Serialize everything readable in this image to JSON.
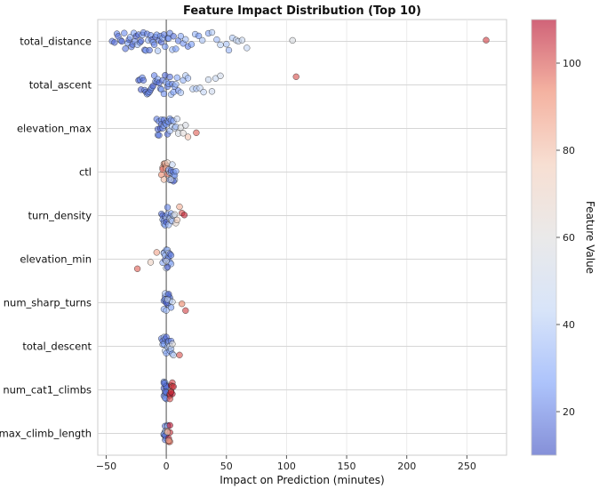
{
  "chart_data": {
    "type": "scatter",
    "subtype": "beeswarm",
    "title": "Feature Impact Distribution (Top 10)",
    "xlabel": "Impact on Prediction (minutes)",
    "ylabel": "",
    "xlim": [
      -57,
      283
    ],
    "xticks": [
      -50,
      0,
      50,
      100,
      150,
      200,
      250
    ],
    "grid": true,
    "colorbar": {
      "label": "Feature Value",
      "min": 10,
      "max": 110,
      "ticks": [
        20,
        40,
        60,
        80,
        100
      ],
      "colormap": "coolwarm",
      "colors": [
        "#3b4cc0",
        "#7b9ff9",
        "#c0d4f5",
        "#dddcdc",
        "#f2cbb7",
        "#ee8468",
        "#b40426"
      ]
    },
    "reference_line": {
      "x": 0,
      "color": "#888888"
    },
    "features": [
      {
        "name": "total_distance",
        "points": [
          [
            -45,
            20
          ],
          [
            -43,
            16
          ],
          [
            -41,
            22
          ],
          [
            -40,
            18
          ],
          [
            -38,
            30
          ],
          [
            -37,
            14
          ],
          [
            -35,
            24
          ],
          [
            -34,
            19
          ],
          [
            -32,
            26
          ],
          [
            -31,
            15
          ],
          [
            -30,
            32
          ],
          [
            -29,
            21
          ],
          [
            -28,
            17
          ],
          [
            -27,
            28
          ],
          [
            -26,
            23
          ],
          [
            -25,
            13
          ],
          [
            -24,
            35
          ],
          [
            -23,
            19
          ],
          [
            -22,
            25
          ],
          [
            -21,
            16
          ],
          [
            -20,
            30
          ],
          [
            -19,
            22
          ],
          [
            -18,
            14
          ],
          [
            -17,
            27
          ],
          [
            -16,
            20
          ],
          [
            -15,
            33
          ],
          [
            -14,
            18
          ],
          [
            -13,
            24
          ],
          [
            -12,
            15
          ],
          [
            -11,
            29
          ],
          [
            -10,
            21
          ],
          [
            -9,
            17
          ],
          [
            -8,
            26
          ],
          [
            -7,
            38
          ],
          [
            -6,
            19
          ],
          [
            -5,
            23
          ],
          [
            -4,
            16
          ],
          [
            -3,
            31
          ],
          [
            -2,
            20
          ],
          [
            -1,
            25
          ],
          [
            1,
            18
          ],
          [
            2,
            28
          ],
          [
            3,
            22
          ],
          [
            5,
            34
          ],
          [
            6,
            17
          ],
          [
            8,
            26
          ],
          [
            10,
            21
          ],
          [
            12,
            30
          ],
          [
            14,
            24
          ],
          [
            16,
            36
          ],
          [
            18,
            20
          ],
          [
            21,
            27
          ],
          [
            24,
            33
          ],
          [
            27,
            25
          ],
          [
            30,
            38
          ],
          [
            35,
            30
          ],
          [
            38,
            40
          ],
          [
            42,
            35
          ],
          [
            45,
            42
          ],
          [
            50,
            38
          ],
          [
            52,
            34
          ],
          [
            55,
            40
          ],
          [
            58,
            44
          ],
          [
            60,
            46
          ],
          [
            63,
            48
          ],
          [
            67,
            45
          ],
          [
            105,
            57
          ],
          [
            266,
            102
          ]
        ]
      },
      {
        "name": "total_ascent",
        "points": [
          [
            -23,
            16
          ],
          [
            -22,
            20
          ],
          [
            -21,
            14
          ],
          [
            -20,
            24
          ],
          [
            -19,
            18
          ],
          [
            -18,
            22
          ],
          [
            -17,
            15
          ],
          [
            -16,
            27
          ],
          [
            -15,
            19
          ],
          [
            -14,
            23
          ],
          [
            -13,
            17
          ],
          [
            -12,
            26
          ],
          [
            -11,
            13
          ],
          [
            -10,
            21
          ],
          [
            -9,
            25
          ],
          [
            -8,
            18
          ],
          [
            -7,
            30
          ],
          [
            -6,
            16
          ],
          [
            -5,
            22
          ],
          [
            -4,
            28
          ],
          [
            -3,
            19
          ],
          [
            -2,
            24
          ],
          [
            -1,
            15
          ],
          [
            0,
            32
          ],
          [
            1,
            20
          ],
          [
            2,
            26
          ],
          [
            3,
            18
          ],
          [
            4,
            34
          ],
          [
            5,
            22
          ],
          [
            6,
            28
          ],
          [
            7,
            25
          ],
          [
            8,
            36
          ],
          [
            9,
            30
          ],
          [
            10,
            24
          ],
          [
            12,
            38
          ],
          [
            14,
            33
          ],
          [
            16,
            40
          ],
          [
            18,
            36
          ],
          [
            22,
            42
          ],
          [
            25,
            38
          ],
          [
            28,
            45
          ],
          [
            31,
            44
          ],
          [
            35,
            48
          ],
          [
            38,
            50
          ],
          [
            41,
            47
          ],
          [
            45,
            52
          ],
          [
            108,
            100
          ]
        ]
      },
      {
        "name": "elevation_max",
        "points": [
          [
            -8,
            20
          ],
          [
            -7,
            16
          ],
          [
            -7,
            25
          ],
          [
            -6,
            18
          ],
          [
            -6,
            22
          ],
          [
            -5,
            14
          ],
          [
            -4,
            27
          ],
          [
            -4,
            19
          ],
          [
            -3,
            23
          ],
          [
            -2,
            17
          ],
          [
            -2,
            30
          ],
          [
            -1,
            21
          ],
          [
            0,
            25
          ],
          [
            1,
            18
          ],
          [
            1,
            33
          ],
          [
            2,
            22
          ],
          [
            3,
            28
          ],
          [
            3,
            36
          ],
          [
            4,
            24
          ],
          [
            5,
            40
          ],
          [
            6,
            30
          ],
          [
            7,
            44
          ],
          [
            8,
            36
          ],
          [
            9,
            50
          ],
          [
            10,
            55
          ],
          [
            12,
            58
          ],
          [
            14,
            62
          ],
          [
            16,
            56
          ],
          [
            18,
            78
          ],
          [
            25,
            98
          ]
        ]
      },
      {
        "name": "ctl",
        "points": [
          [
            -4,
            92
          ],
          [
            -3,
            85
          ],
          [
            -3,
            98
          ],
          [
            -2,
            88
          ],
          [
            -2,
            80
          ],
          [
            -1,
            95
          ],
          [
            -1,
            76
          ],
          [
            0,
            90
          ],
          [
            0,
            83
          ],
          [
            1,
            72
          ],
          [
            1,
            96
          ],
          [
            2,
            64
          ],
          [
            2,
            30
          ],
          [
            3,
            40
          ],
          [
            3,
            22
          ],
          [
            4,
            35
          ],
          [
            4,
            18
          ],
          [
            5,
            45
          ],
          [
            5,
            26
          ],
          [
            6,
            32
          ],
          [
            6,
            20
          ],
          [
            7,
            38
          ],
          [
            7,
            25
          ],
          [
            8,
            28
          ],
          [
            6,
            14
          ],
          [
            4,
            50
          ]
        ]
      },
      {
        "name": "turn_density",
        "points": [
          [
            -4,
            20
          ],
          [
            -3,
            16
          ],
          [
            -3,
            28
          ],
          [
            -2,
            22
          ],
          [
            -2,
            34
          ],
          [
            -1,
            18
          ],
          [
            -1,
            26
          ],
          [
            0,
            40
          ],
          [
            0,
            14
          ],
          [
            1,
            30
          ],
          [
            1,
            22
          ],
          [
            2,
            36
          ],
          [
            3,
            19
          ],
          [
            3,
            44
          ],
          [
            4,
            27
          ],
          [
            4,
            50
          ],
          [
            5,
            33
          ],
          [
            6,
            38
          ],
          [
            7,
            58
          ],
          [
            8,
            66
          ],
          [
            9,
            74
          ],
          [
            11,
            84
          ],
          [
            13,
            100
          ],
          [
            15,
            106
          ]
        ]
      },
      {
        "name": "elevation_min",
        "points": [
          [
            -24,
            98
          ],
          [
            -13,
            72
          ],
          [
            -8,
            86
          ],
          [
            -3,
            30
          ],
          [
            -2,
            22
          ],
          [
            -2,
            40
          ],
          [
            -1,
            18
          ],
          [
            -1,
            34
          ],
          [
            0,
            26
          ],
          [
            0,
            44
          ],
          [
            1,
            20
          ],
          [
            1,
            36
          ],
          [
            2,
            24
          ],
          [
            2,
            48
          ],
          [
            3,
            28
          ],
          [
            3,
            16
          ],
          [
            4,
            32
          ],
          [
            4,
            22
          ],
          [
            1,
            14
          ],
          [
            0,
            52
          ]
        ]
      },
      {
        "name": "num_sharp_turns",
        "points": [
          [
            -2,
            20
          ],
          [
            -2,
            30
          ],
          [
            -1,
            16
          ],
          [
            -1,
            26
          ],
          [
            0,
            22
          ],
          [
            0,
            36
          ],
          [
            1,
            18
          ],
          [
            1,
            28
          ],
          [
            2,
            24
          ],
          [
            2,
            40
          ],
          [
            3,
            20
          ],
          [
            3,
            32
          ],
          [
            0,
            14
          ],
          [
            1,
            44
          ],
          [
            -1,
            38
          ],
          [
            2,
            16
          ],
          [
            4,
            26
          ],
          [
            5,
            48
          ],
          [
            13,
            92
          ],
          [
            16,
            102
          ]
        ]
      },
      {
        "name": "total_descent",
        "points": [
          [
            -4,
            22
          ],
          [
            -3,
            30
          ],
          [
            -3,
            18
          ],
          [
            -2,
            26
          ],
          [
            -2,
            36
          ],
          [
            -1,
            20
          ],
          [
            -1,
            44
          ],
          [
            0,
            28
          ],
          [
            0,
            16
          ],
          [
            1,
            34
          ],
          [
            1,
            24
          ],
          [
            2,
            40
          ],
          [
            2,
            20
          ],
          [
            3,
            30
          ],
          [
            3,
            50
          ],
          [
            4,
            22
          ],
          [
            4,
            38
          ],
          [
            5,
            26
          ],
          [
            6,
            46
          ],
          [
            5,
            60
          ],
          [
            11,
            100
          ]
        ]
      },
      {
        "name": "num_cat1_climbs",
        "points": [
          [
            -2,
            20
          ],
          [
            -2,
            14
          ],
          [
            -2,
            26
          ],
          [
            -1,
            18
          ],
          [
            -1,
            30
          ],
          [
            -1,
            22
          ],
          [
            -1,
            16
          ],
          [
            0,
            24
          ],
          [
            0,
            20
          ],
          [
            0,
            28
          ],
          [
            0,
            14
          ],
          [
            -2,
            18
          ],
          [
            -1,
            24
          ],
          [
            0,
            18
          ],
          [
            3,
            108
          ],
          [
            3,
            104
          ],
          [
            4,
            110
          ],
          [
            4,
            106
          ],
          [
            5,
            102
          ],
          [
            5,
            108
          ],
          [
            3,
            100
          ],
          [
            4,
            104
          ],
          [
            5,
            96
          ],
          [
            6,
            106
          ]
        ]
      },
      {
        "name": "max_climb_length",
        "points": [
          [
            -2,
            20
          ],
          [
            -2,
            26
          ],
          [
            -1,
            16
          ],
          [
            -1,
            30
          ],
          [
            -1,
            22
          ],
          [
            0,
            24
          ],
          [
            0,
            18
          ],
          [
            -2,
            34
          ],
          [
            -1,
            14
          ],
          [
            0,
            38
          ],
          [
            1,
            22
          ],
          [
            1,
            40
          ],
          [
            1,
            92
          ],
          [
            2,
            100
          ],
          [
            2,
            106
          ],
          [
            3,
            96
          ],
          [
            3,
            104
          ],
          [
            2,
            84
          ],
          [
            1,
            76
          ],
          [
            3,
            108
          ]
        ]
      }
    ]
  }
}
